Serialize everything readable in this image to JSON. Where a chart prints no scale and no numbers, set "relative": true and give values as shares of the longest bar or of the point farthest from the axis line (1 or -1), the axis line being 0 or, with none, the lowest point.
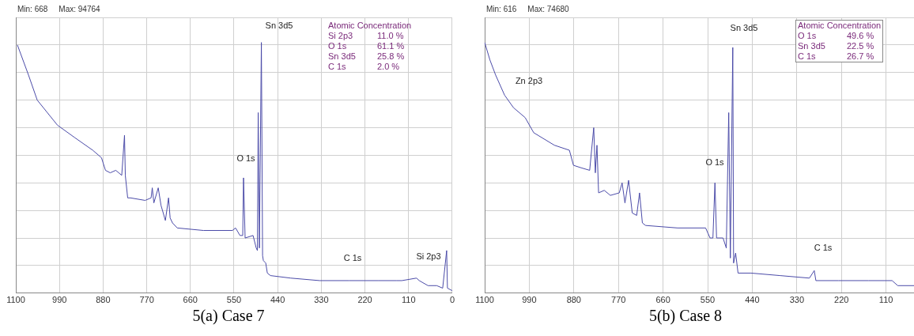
{
  "chart_data": [
    {
      "type": "line",
      "title": "5(a) Case 7",
      "relative": true,
      "grid": true,
      "legend": false,
      "marker": "none",
      "tick_labels": "x",
      "xlim": [
        1100,
        0
      ],
      "xticks": [
        1100,
        990,
        880,
        770,
        660,
        550,
        440,
        330,
        220,
        110,
        0
      ],
      "series": [
        {
          "color": "#4b4ba8",
          "x": [
            1096,
            1068,
            1046,
            995,
            951,
            906,
            884,
            874,
            862,
            848,
            833,
            826,
            824,
            818,
            811,
            774,
            759,
            756,
            752,
            741,
            734,
            723,
            715,
            711,
            705,
            693,
            627,
            554,
            546,
            535,
            528,
            526,
            522,
            502,
            494,
            491,
            489,
            486,
            481,
            478,
            476,
            470,
            466,
            458,
            407,
            334,
            260,
            187,
            141,
            127,
            90,
            83,
            61,
            39,
            24,
            14,
            12,
            0
          ],
          "values": [
            0.99,
            0.87,
            0.77,
            0.67,
            0.62,
            0.57,
            0.54,
            0.49,
            0.48,
            0.49,
            0.47,
            0.63,
            0.47,
            0.38,
            0.38,
            0.37,
            0.38,
            0.42,
            0.36,
            0.42,
            0.35,
            0.29,
            0.38,
            0.3,
            0.28,
            0.26,
            0.25,
            0.25,
            0.26,
            0.23,
            0.23,
            0.46,
            0.22,
            0.23,
            0.18,
            0.17,
            0.72,
            0.18,
            1,
            0.15,
            0.13,
            0.12,
            0.08,
            0.07,
            0.06,
            0.05,
            0.05,
            0.05,
            0.05,
            0.05,
            0.06,
            0.05,
            0.03,
            0.03,
            0.02,
            0.17,
            0.02,
            0.01
          ]
        }
      ],
      "annotations": [
        "Min: 668",
        "Max: 94764",
        "Atomic Concentration",
        "Si 2p3",
        "11.0 %",
        "O 1s",
        "61.1 %",
        "Sn 3d5",
        "25.8 %",
        "C 1s",
        "2.0 %",
        "Sn 3d5",
        "O 1s",
        "C 1s",
        "Si 2p3"
      ]
    },
    {
      "type": "line",
      "title": "5(b) Case 8",
      "relative": true,
      "grid": true,
      "legend": false,
      "marker": "none",
      "tick_labels": "x",
      "xlim": [
        1100,
        41
      ],
      "xticks": [
        1100,
        990,
        880,
        770,
        660,
        550,
        440,
        330,
        220,
        110
      ],
      "series": [
        {
          "color": "#4b4ba8",
          "x": [
            1100,
            1087,
            1073,
            1051,
            1029,
            1000,
            979,
            928,
            891,
            881,
            862,
            841,
            831,
            827,
            823,
            819,
            805,
            790,
            768,
            761,
            754,
            745,
            736,
            725,
            718,
            711,
            703,
            624,
            555,
            544,
            537,
            532,
            528,
            512,
            504,
            498,
            494,
            488,
            486,
            481,
            475,
            443,
            371,
            299,
            287,
            283,
            227,
            153,
            95,
            81,
            41
          ],
          "values": [
            1,
            0.93,
            0.87,
            0.79,
            0.74,
            0.7,
            0.64,
            0.59,
            0.57,
            0.51,
            0.5,
            0.49,
            0.66,
            0.48,
            0.59,
            0.4,
            0.41,
            0.39,
            0.4,
            0.44,
            0.36,
            0.45,
            0.32,
            0.31,
            0.4,
            0.28,
            0.27,
            0.26,
            0.26,
            0.22,
            0.22,
            0.44,
            0.22,
            0.22,
            0.18,
            0.72,
            0.14,
            0.98,
            0.12,
            0.16,
            0.08,
            0.08,
            0.07,
            0.06,
            0.09,
            0.05,
            0.05,
            0.05,
            0.05,
            0.03,
            0.03
          ]
        }
      ],
      "annotations": [
        "Min: 616",
        "Max: 74680",
        "Atomic Concentration",
        "O 1s",
        "49.6 %",
        "Sn 3d5",
        "22.5 %",
        "C 1s",
        "26.7 %",
        "Zn 2p3",
        "Sn 3d5",
        "O 1s",
        "C 1s"
      ]
    }
  ]
}
